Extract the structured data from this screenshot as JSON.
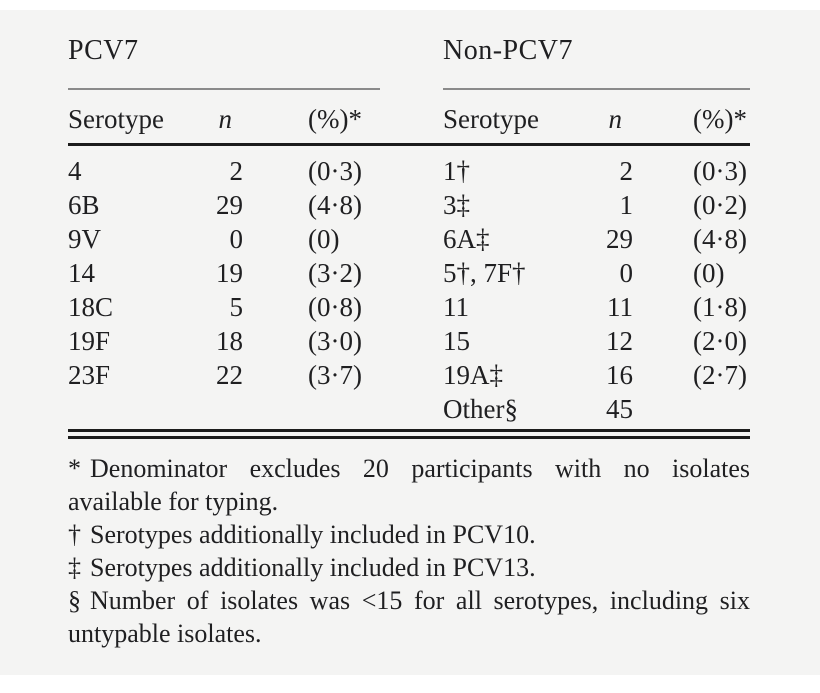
{
  "table": {
    "groups": [
      {
        "title": "PCV7",
        "col_serotype": "Serotype",
        "col_n": "n",
        "col_pct": "(%)*",
        "rows": [
          [
            "4",
            "2",
            "(0·3)"
          ],
          [
            "6B",
            "29",
            "(4·8)"
          ],
          [
            "9V",
            "0",
            "(0)"
          ],
          [
            "14",
            "19",
            "(3·2)"
          ],
          [
            "18C",
            "5",
            "(0·8)"
          ],
          [
            "19F",
            "18",
            "(3·0)"
          ],
          [
            "23F",
            "22",
            "(3·7)"
          ]
        ]
      },
      {
        "title": "Non-PCV7",
        "col_serotype": "Serotype",
        "col_n": "n",
        "col_pct": "(%)*",
        "rows": [
          [
            "1†",
            "2",
            "(0·3)"
          ],
          [
            "3‡",
            "1",
            "(0·2)"
          ],
          [
            "6A‡",
            "29",
            "(4·8)"
          ],
          [
            "5†, 7F†",
            "0",
            "(0)"
          ],
          [
            "11",
            "11",
            "(1·8)"
          ],
          [
            "15",
            "12",
            "(2·0)"
          ],
          [
            "19A‡",
            "16",
            "(2·7)"
          ],
          [
            "Other§",
            "45",
            ""
          ]
        ]
      }
    ],
    "footnotes": [
      {
        "marker": "*",
        "text": "Denominator excludes 20 participants with no isolates available for typing."
      },
      {
        "marker": "†",
        "text": "Serotypes additionally included in PCV10."
      },
      {
        "marker": "‡",
        "text": "Serotypes additionally included in PCV13."
      },
      {
        "marker": "§",
        "text": "Number of isolates was <15 for all serotypes, including six untypable isolates."
      }
    ],
    "colors": {
      "background": "#f4f4f3",
      "text": "#1f1f21",
      "rule_thin": "#8a8a8a",
      "rule_heavy": "#1c1c1c"
    }
  }
}
